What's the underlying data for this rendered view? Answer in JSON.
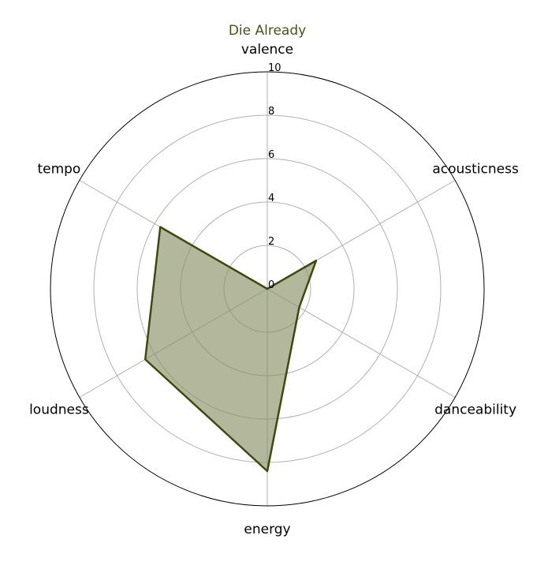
{
  "chart_data": {
    "type": "radar",
    "title": "Die Already",
    "axes": [
      "valence",
      "acousticness",
      "danceability",
      "energy",
      "loudness",
      "tempo"
    ],
    "series": [
      {
        "values": [
          0.0,
          2.6,
          1.7,
          8.4,
          6.5,
          5.7
        ]
      }
    ],
    "rlim": [
      0,
      10
    ],
    "rticks": [
      "0",
      "2",
      "4",
      "6",
      "8",
      "10"
    ],
    "grid": true,
    "colors": {
      "line": "#3d4a0f",
      "fill": "#8a9067",
      "title": "#4a5216",
      "grid": "#b0b0b0",
      "outer": "#000000"
    }
  }
}
